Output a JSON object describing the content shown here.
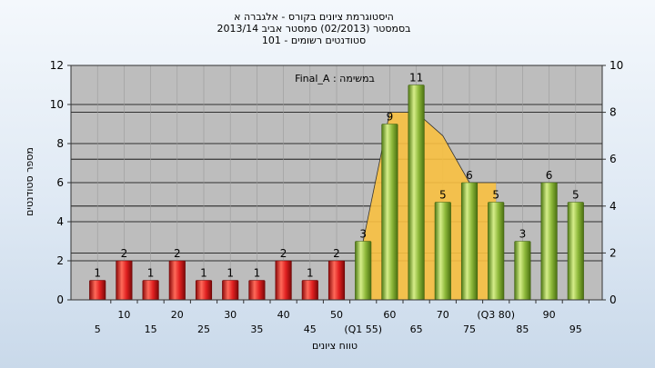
{
  "chart_data": {
    "type": "bar",
    "title_lines": [
      "היסטוגרמת ציונים בקורס - אלגברה א",
      "בסמסטר  (02/2013)  סמסטר אביב 2013/14",
      "סטודנטים רשומים - 101"
    ],
    "annotation": "במשימה : Final_A",
    "ylabel": "מספר סטודנטים",
    "xlabel": "טווח ציונים",
    "ylim": [
      0,
      12
    ],
    "y_ticks": [
      0,
      2,
      4,
      6,
      8,
      10,
      12
    ],
    "y2lim": [
      0,
      10
    ],
    "y2_ticks": [
      0,
      2,
      4,
      6,
      8,
      10
    ],
    "x_tick_labels": [
      "5",
      "10",
      "15",
      "20",
      "25",
      "30",
      "35",
      "40",
      "45",
      "50",
      "(Q1 55)",
      "60",
      "65",
      "70",
      "75",
      "(Q3 80)",
      "85",
      "90",
      "95"
    ],
    "categories": [
      "5",
      "10",
      "15",
      "20",
      "25",
      "30",
      "35",
      "40",
      "45",
      "50",
      "55",
      "60",
      "65",
      "70",
      "75",
      "80",
      "85",
      "90",
      "95"
    ],
    "values": [
      1,
      2,
      1,
      2,
      1,
      1,
      1,
      2,
      1,
      2,
      3,
      9,
      11,
      5,
      6,
      5,
      3,
      6,
      5
    ],
    "bar_colors": [
      "#e02020",
      "#e02020",
      "#e02020",
      "#e02020",
      "#e02020",
      "#e02020",
      "#e02020",
      "#e02020",
      "#e02020",
      "#e02020",
      "#8db83a",
      "#8db83a",
      "#8db83a",
      "#8db83a",
      "#8db83a",
      "#8db83a",
      "#8db83a",
      "#8db83a",
      "#8db83a"
    ],
    "area_series": {
      "x": [
        "55",
        "60",
        "65",
        "70",
        "75",
        "80"
      ],
      "values": [
        2.5,
        8,
        8,
        7,
        5,
        5
      ],
      "color": "#f8c040"
    },
    "grid": true,
    "plot_background": "#bdbdbd"
  }
}
